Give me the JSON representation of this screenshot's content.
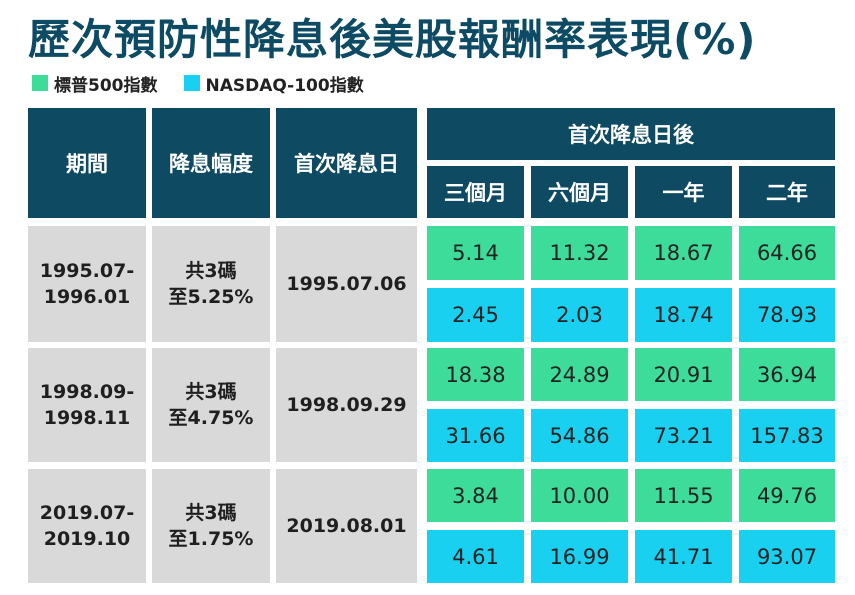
{
  "title": "歷次預防性降息後美股報酬率表現(%)",
  "legend": [
    {
      "label": "標普500指數",
      "color": "#3ddc9a"
    },
    {
      "label": "NASDAQ-100指數",
      "color": "#1ad0f0"
    }
  ],
  "headers": {
    "period": "期間",
    "cut_size": "降息幅度",
    "first_cut_date": "首次降息日",
    "after_group": "首次降息日後",
    "horizons": [
      "三個月",
      "六個月",
      "一年",
      "二年"
    ]
  },
  "chart_data": {
    "type": "table",
    "title": "歷次預防性降息後美股報酬率表現(%)",
    "columns": [
      "期間",
      "降息幅度",
      "首次降息日",
      "三個月",
      "六個月",
      "一年",
      "二年"
    ],
    "series_names": [
      "標普500指數",
      "NASDAQ-100指數"
    ],
    "rows": [
      {
        "period": [
          "1995.07-",
          "1996.01"
        ],
        "cut": [
          "共3碼",
          "至5.25%"
        ],
        "date": "1995.07.06",
        "sp500": [
          "5.14",
          "11.32",
          "18.67",
          "64.66"
        ],
        "nasdaq100": [
          "2.45",
          "2.03",
          "18.74",
          "78.93"
        ]
      },
      {
        "period": [
          "1998.09-",
          "1998.11"
        ],
        "cut": [
          "共3碼",
          "至4.75%"
        ],
        "date": "1998.09.29",
        "sp500": [
          "18.38",
          "24.89",
          "20.91",
          "36.94"
        ],
        "nasdaq100": [
          "31.66",
          "54.86",
          "73.21",
          "157.83"
        ]
      },
      {
        "period": [
          "2019.07-",
          "2019.10"
        ],
        "cut": [
          "共3碼",
          "至1.75%"
        ],
        "date": "2019.08.01",
        "sp500": [
          "3.84",
          "10.00",
          "11.55",
          "49.76"
        ],
        "nasdaq100": [
          "4.61",
          "16.99",
          "41.71",
          "93.07"
        ]
      }
    ]
  }
}
